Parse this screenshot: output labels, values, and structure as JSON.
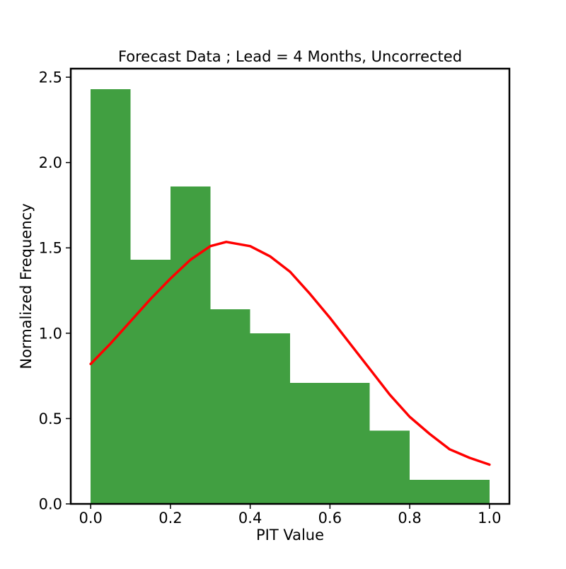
{
  "chart_data": {
    "type": "bar",
    "title": "Forecast Data ; Lead = 4 Months, Uncorrected",
    "xlabel": "PIT Value",
    "ylabel": "Normalized Frequency",
    "xlim": [
      -0.05,
      1.05
    ],
    "ylim": [
      0,
      2.55
    ],
    "x_ticks": [
      0.0,
      0.2,
      0.4,
      0.6,
      0.8,
      1.0
    ],
    "x_tick_labels": [
      "0.0",
      "0.2",
      "0.4",
      "0.6",
      "0.8",
      "1.0"
    ],
    "y_ticks": [
      0.0,
      0.5,
      1.0,
      1.5,
      2.0,
      2.5
    ],
    "y_tick_labels": [
      "0.0",
      "0.5",
      "1.0",
      "1.5",
      "2.0",
      "2.5"
    ],
    "histogram": {
      "bin_edges": [
        0.0,
        0.1,
        0.2,
        0.3,
        0.4,
        0.5,
        0.6,
        0.7,
        0.8,
        0.9,
        1.0
      ],
      "values": [
        2.43,
        1.43,
        1.86,
        1.14,
        1.0,
        0.71,
        0.71,
        0.43,
        0.14,
        0.14
      ],
      "color": "#419f41"
    },
    "curve": {
      "x": [
        0.0,
        0.05,
        0.1,
        0.15,
        0.2,
        0.25,
        0.3,
        0.34,
        0.4,
        0.45,
        0.5,
        0.55,
        0.6,
        0.65,
        0.7,
        0.75,
        0.8,
        0.85,
        0.9,
        0.95,
        1.0
      ],
      "y": [
        0.82,
        0.94,
        1.07,
        1.2,
        1.32,
        1.43,
        1.51,
        1.535,
        1.51,
        1.45,
        1.36,
        1.23,
        1.09,
        0.94,
        0.79,
        0.64,
        0.51,
        0.41,
        0.32,
        0.27,
        0.23
      ],
      "color": "#ff0000"
    },
    "grid": false
  }
}
